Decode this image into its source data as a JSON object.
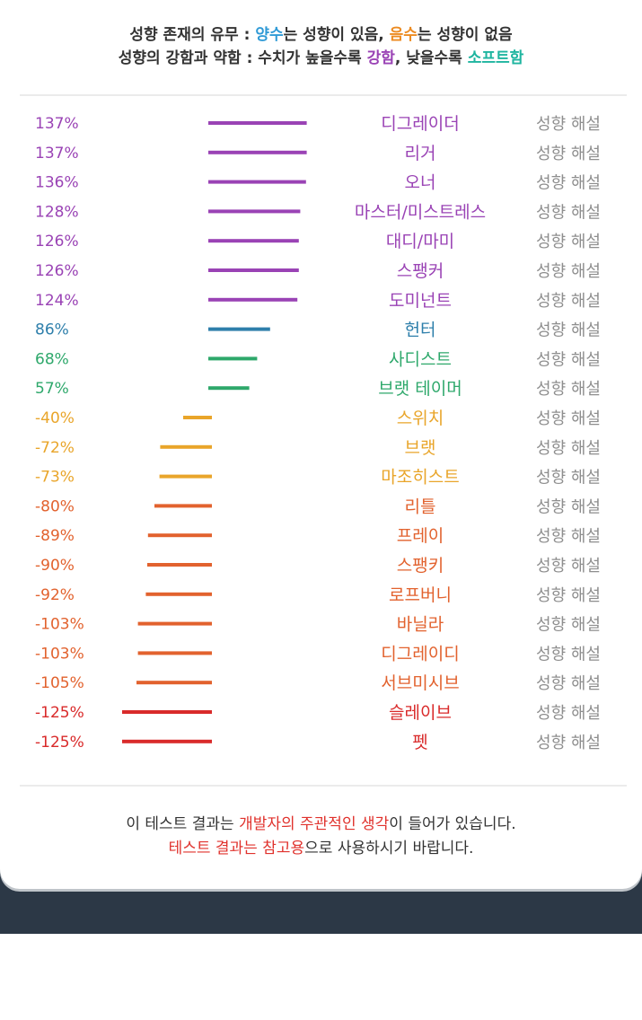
{
  "legend": {
    "line1": {
      "lead": "성향 존재의 유무 : ",
      "positive": "양수",
      "mid": "는 성향이 있음, ",
      "negative": "음수",
      "tail": "는 성향이 없음"
    },
    "line2": {
      "lead": "성향의 강함과 약함 : 수치가 높을수록 ",
      "strong": "강함",
      "mid": ", 낮을수록 ",
      "soft": "소프트함"
    }
  },
  "colors": {
    "positive_highlight": "#2f9ad6",
    "negative_highlight": "#ec8b22",
    "strong_highlight": "#9a43b5",
    "soft_highlight": "#1fb5a0",
    "explain_link": "#8e8e8e",
    "note_highlight": "#e0322d"
  },
  "chart_data": {
    "type": "bar",
    "orientation": "horizontal",
    "unit": "%",
    "categories": [
      "디그레이더",
      "리거",
      "오너",
      "마스터/미스트레스",
      "대디/마미",
      "스팽커",
      "도미넌트",
      "헌터",
      "사디스트",
      "브랫 테이머",
      "스위치",
      "브랫",
      "마조히스트",
      "리틀",
      "프레이",
      "스팽키",
      "로프버니",
      "바닐라",
      "디그레이디",
      "서브미시브",
      "슬레이브",
      "펫"
    ],
    "values": [
      137,
      137,
      136,
      128,
      126,
      126,
      124,
      86,
      68,
      57,
      -40,
      -72,
      -73,
      -80,
      -89,
      -90,
      -92,
      -103,
      -103,
      -105,
      -125,
      -125
    ],
    "value_labels": [
      "137%",
      "137%",
      "136%",
      "128%",
      "126%",
      "126%",
      "124%",
      "86%",
      "68%",
      "57%",
      "-40%",
      "-72%",
      "-73%",
      "-80%",
      "-89%",
      "-90%",
      "-92%",
      "-103%",
      "-103%",
      "-105%",
      "-125%",
      "-125%"
    ],
    "colors": [
      "#9a43b5",
      "#9a43b5",
      "#9a43b5",
      "#9a43b5",
      "#9a43b5",
      "#9a43b5",
      "#9a43b5",
      "#2e7fab",
      "#2ea86b",
      "#2ea86b",
      "#e9a52a",
      "#e9a52a",
      "#e9a52a",
      "#e2622e",
      "#e2622e",
      "#e2622e",
      "#e2622e",
      "#e2622e",
      "#e2622e",
      "#e2622e",
      "#d92a2a",
      "#d92a2a"
    ],
    "link_label": "성향 해설",
    "xlim": [
      -125,
      137
    ],
    "grid": false
  },
  "note": {
    "line1": {
      "lead": "이 테스트 결과는 ",
      "highlight": "개발자의 주관적인 생각",
      "tail": "이 들어가 있습니다."
    },
    "line2": {
      "highlight": "테스트 결과는 참고용",
      "tail": "으로 사용하시기 바랍니다."
    }
  },
  "nav": {
    "recents": "recents-icon",
    "home": "home-icon",
    "back": "back-icon"
  }
}
